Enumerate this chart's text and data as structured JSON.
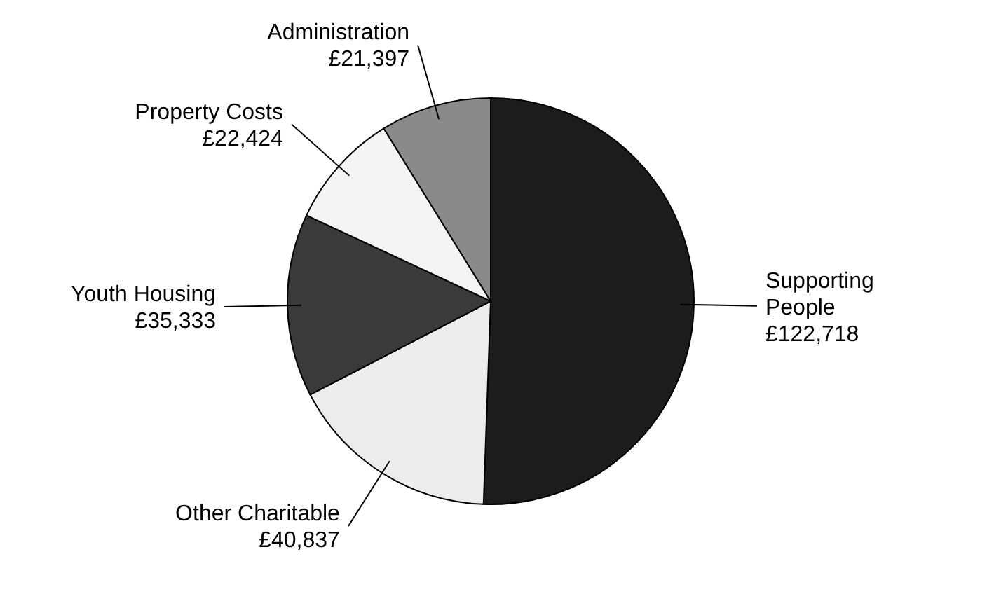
{
  "chart_data": {
    "type": "pie",
    "categories": [
      "Supporting People",
      "Other Charitable",
      "Youth Housing",
      "Property Costs",
      "Administration"
    ],
    "values": [
      122718,
      40837,
      35333,
      22424,
      21397
    ],
    "value_labels": [
      "£122,718",
      "£40,837",
      "£35,333",
      "£22,424",
      "£21,397"
    ],
    "colors": [
      "#1c1c1c",
      "#ececec",
      "#3a3a3a",
      "#f4f4f4",
      "#8a8a8a"
    ]
  }
}
